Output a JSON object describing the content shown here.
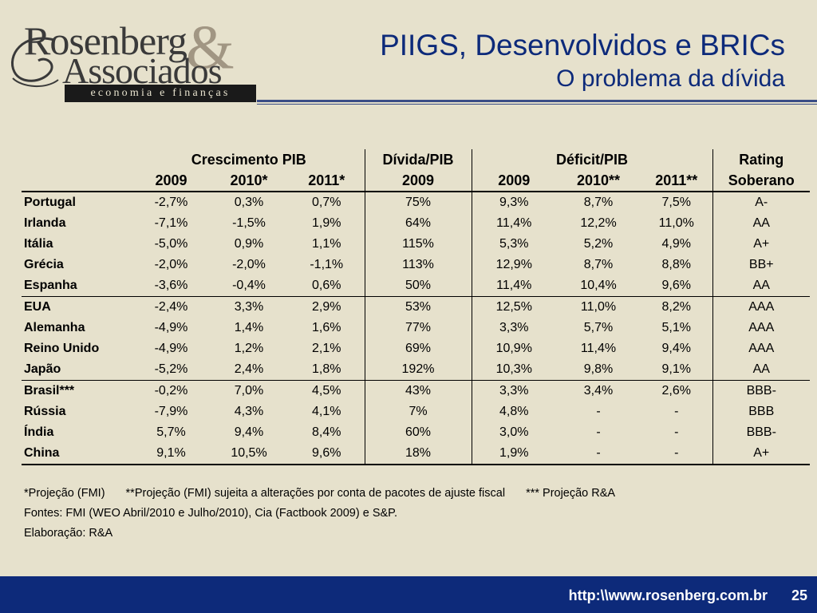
{
  "logo": {
    "line1": "Rosenberg",
    "amp": "&",
    "line2": "Associados",
    "band": "economia e finanças"
  },
  "title": "PIIGS, Desenvolvidos e BRICs",
  "subtitle": "O problema da dívida",
  "table": {
    "groups": {
      "crescimento": "Crescimento PIB",
      "divida": "Dívida/PIB",
      "deficit": "Déficit/PIB",
      "rating_line1": "Rating",
      "rating_line2": "Soberano"
    },
    "subheaders": [
      "2009",
      "2010*",
      "2011*",
      "2009",
      "2009",
      "2010**",
      "2011**"
    ],
    "rows": [
      {
        "country": "Portugal",
        "c2009": "-2,7%",
        "c2010": "0,3%",
        "c2011": "0,7%",
        "divida": "75%",
        "d2009": "9,3%",
        "d2010": "8,7%",
        "d2011": "7,5%",
        "rating": "A-"
      },
      {
        "country": "Irlanda",
        "c2009": "-7,1%",
        "c2010": "-1,5%",
        "c2011": "1,9%",
        "divida": "64%",
        "d2009": "11,4%",
        "d2010": "12,2%",
        "d2011": "11,0%",
        "rating": "AA"
      },
      {
        "country": "Itália",
        "c2009": "-5,0%",
        "c2010": "0,9%",
        "c2011": "1,1%",
        "divida": "115%",
        "d2009": "5,3%",
        "d2010": "5,2%",
        "d2011": "4,9%",
        "rating": "A+"
      },
      {
        "country": "Grécia",
        "c2009": "-2,0%",
        "c2010": "-2,0%",
        "c2011": "-1,1%",
        "divida": "113%",
        "d2009": "12,9%",
        "d2010": "8,7%",
        "d2011": "8,8%",
        "rating": "BB+"
      },
      {
        "country": "Espanha",
        "c2009": "-3,6%",
        "c2010": "-0,4%",
        "c2011": "0,6%",
        "divida": "50%",
        "d2009": "11,4%",
        "d2010": "10,4%",
        "d2011": "9,6%",
        "rating": "AA"
      },
      {
        "country": "EUA",
        "c2009": "-2,4%",
        "c2010": "3,3%",
        "c2011": "2,9%",
        "divida": "53%",
        "d2009": "12,5%",
        "d2010": "11,0%",
        "d2011": "8,2%",
        "rating": "AAA"
      },
      {
        "country": "Alemanha",
        "c2009": "-4,9%",
        "c2010": "1,4%",
        "c2011": "1,6%",
        "divida": "77%",
        "d2009": "3,3%",
        "d2010": "5,7%",
        "d2011": "5,1%",
        "rating": "AAA"
      },
      {
        "country": "Reino Unido",
        "c2009": "-4,9%",
        "c2010": "1,2%",
        "c2011": "2,1%",
        "divida": "69%",
        "d2009": "10,9%",
        "d2010": "11,4%",
        "d2011": "9,4%",
        "rating": "AAA"
      },
      {
        "country": "Japão",
        "c2009": "-5,2%",
        "c2010": "2,4%",
        "c2011": "1,8%",
        "divida": "192%",
        "d2009": "10,3%",
        "d2010": "9,8%",
        "d2011": "9,1%",
        "rating": "AA"
      },
      {
        "country": "Brasil***",
        "c2009": "-0,2%",
        "c2010": "7,0%",
        "c2011": "4,5%",
        "divida": "43%",
        "d2009": "3,3%",
        "d2010": "3,4%",
        "d2011": "2,6%",
        "rating": "BBB-"
      },
      {
        "country": "Rússia",
        "c2009": "-7,9%",
        "c2010": "4,3%",
        "c2011": "4,1%",
        "divida": "7%",
        "d2009": "4,8%",
        "d2010": "-",
        "d2011": "-",
        "rating": "BBB"
      },
      {
        "country": "Índia",
        "c2009": "5,7%",
        "c2010": "9,4%",
        "c2011": "8,4%",
        "divida": "60%",
        "d2009": "3,0%",
        "d2010": "-",
        "d2011": "-",
        "rating": "BBB-"
      },
      {
        "country": "China",
        "c2009": "9,1%",
        "c2010": "10,5%",
        "c2011": "9,6%",
        "divida": "18%",
        "d2009": "1,9%",
        "d2010": "-",
        "d2011": "-",
        "rating": "A+"
      }
    ]
  },
  "notes": {
    "n1": "*Projeção (FMI)",
    "n2": "**Projeção (FMI) sujeita a alterações por conta de pacotes de ajuste fiscal",
    "n3": "*** Projeção R&A",
    "sources": "Fontes: FMI (WEO Abril/2010 e Julho/2010), Cia (Factbook 2009) e S&P.",
    "elaboration": "Elaboração: R&A"
  },
  "footer": {
    "url": "http:\\\\www.rosenberg.com.br",
    "page": "25"
  }
}
